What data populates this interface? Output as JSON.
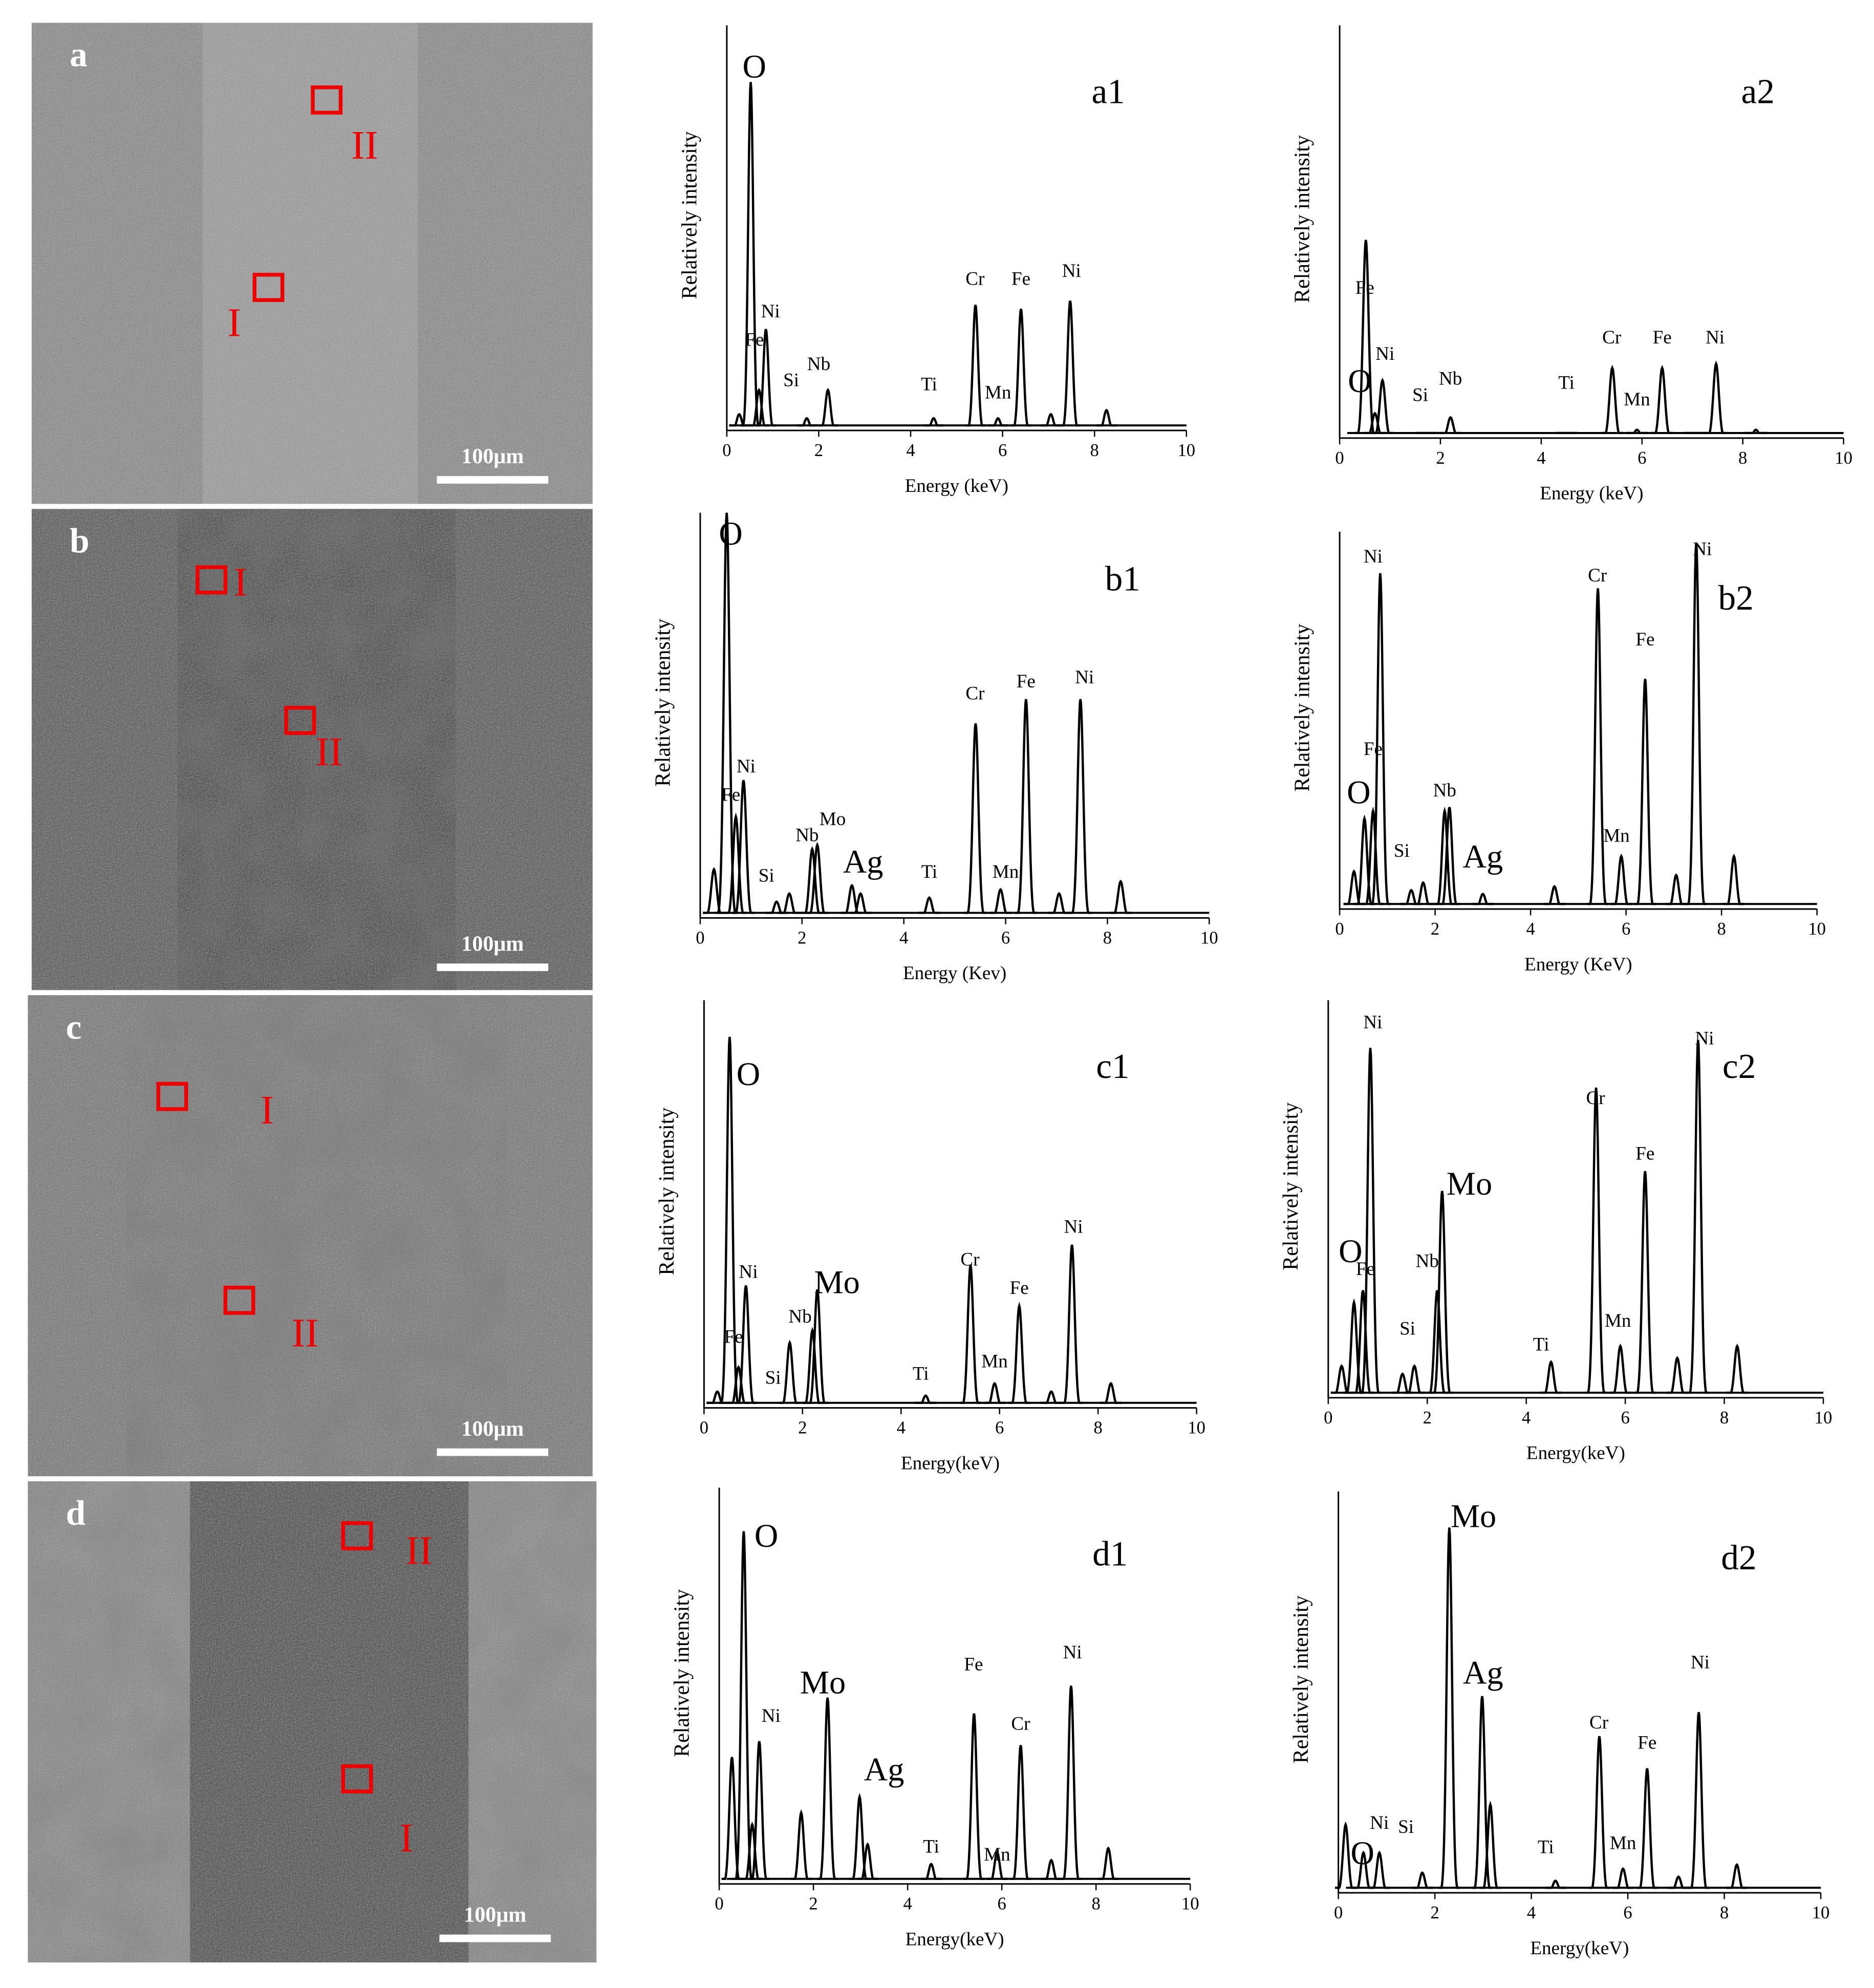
{
  "micrographs": [
    {
      "label": "a",
      "scale_bar": "100μm",
      "regions": [
        "I",
        "II"
      ]
    },
    {
      "label": "b",
      "scale_bar": "100μm",
      "regions": [
        "I",
        "II"
      ]
    },
    {
      "label": "c",
      "scale_bar": "100μm",
      "regions": [
        "I",
        "II"
      ]
    },
    {
      "label": "d",
      "scale_bar": "100μm",
      "regions": [
        "I",
        "II"
      ]
    }
  ],
  "chart_data": [
    {
      "type": "spectrum",
      "label": "a1",
      "ylabel": "Relatively intensity",
      "xlabel": "Energy (keV)",
      "xlim": [
        0,
        10
      ],
      "xticks": [
        0,
        2,
        4,
        6,
        8,
        10
      ],
      "ylim": [
        0,
        100
      ],
      "color": "#000000",
      "x": [
        0.27,
        0.52,
        0.7,
        0.85,
        1.74,
        2.2,
        4.5,
        5.41,
        5.9,
        6.4,
        7.05,
        7.47,
        8.26
      ],
      "values": [
        4,
        86,
        10,
        25,
        3,
        10,
        3,
        31,
        3,
        30,
        4,
        32,
        5
      ],
      "annotations": [
        {
          "text": "O",
          "x": 0.6,
          "y": 89,
          "large": true
        },
        {
          "text": "Ni",
          "x": 0.95,
          "y": 29
        },
        {
          "text": "Fe",
          "x": 0.6,
          "y": 22
        },
        {
          "text": "Si",
          "x": 1.4,
          "y": 12
        },
        {
          "text": "Nb",
          "x": 2.0,
          "y": 16
        },
        {
          "text": "Ti",
          "x": 4.4,
          "y": 11
        },
        {
          "text": "Cr",
          "x": 5.4,
          "y": 37
        },
        {
          "text": "Mn",
          "x": 5.9,
          "y": 9
        },
        {
          "text": "Fe",
          "x": 6.4,
          "y": 37
        },
        {
          "text": "Ni",
          "x": 7.5,
          "y": 39
        }
      ]
    },
    {
      "type": "spectrum",
      "label": "a2",
      "ylabel": "Relatively intensity",
      "xlabel": "Energy (keV)",
      "xlim": [
        0,
        10
      ],
      "xticks": [
        0,
        2,
        4,
        6,
        8,
        10
      ],
      "ylim": [
        0,
        100
      ],
      "color": "#000000",
      "x": [
        0.52,
        0.7,
        0.85,
        1.74,
        2.2,
        4.5,
        5.41,
        5.9,
        6.4,
        7.05,
        7.47,
        8.26
      ],
      "values": [
        48,
        6,
        14,
        1,
        5,
        1,
        17,
        2,
        17,
        1,
        18,
        2
      ],
      "annotations": [
        {
          "text": "Fe",
          "x": 0.5,
          "y": 36
        },
        {
          "text": "Ni",
          "x": 0.9,
          "y": 20
        },
        {
          "text": "O",
          "x": 0.4,
          "y": 13,
          "large": true
        },
        {
          "text": "Si",
          "x": 1.6,
          "y": 10
        },
        {
          "text": "Nb",
          "x": 2.2,
          "y": 14
        },
        {
          "text": "Ti",
          "x": 4.5,
          "y": 13
        },
        {
          "text": "Cr",
          "x": 5.4,
          "y": 24
        },
        {
          "text": "Mn",
          "x": 5.9,
          "y": 9
        },
        {
          "text": "Fe",
          "x": 6.4,
          "y": 24
        },
        {
          "text": "Ni",
          "x": 7.45,
          "y": 24
        }
      ]
    },
    {
      "type": "spectrum",
      "label": "b1",
      "ylabel": "Relatively intensity",
      "xlabel": "Energy (Kev)",
      "xlim": [
        0,
        10
      ],
      "xticks": [
        0,
        2,
        4,
        6,
        8,
        10
      ],
      "ylim": [
        0,
        100
      ],
      "color": "#000000",
      "x": [
        0.27,
        0.52,
        0.7,
        0.85,
        1.5,
        1.75,
        2.2,
        2.3,
        2.98,
        3.15,
        4.5,
        5.41,
        5.9,
        6.4,
        7.05,
        7.47,
        8.26
      ],
      "values": [
        12,
        100,
        25,
        34,
        4,
        6,
        17,
        18,
        8,
        6,
        5,
        48,
        7,
        54,
        6,
        54,
        9
      ],
      "annotations": [
        {
          "text": "O",
          "x": 0.6,
          "y": 94,
          "large": true
        },
        {
          "text": "Ni",
          "x": 0.9,
          "y": 37
        },
        {
          "text": "Fe",
          "x": 0.6,
          "y": 30
        },
        {
          "text": "Si",
          "x": 1.3,
          "y": 10
        },
        {
          "text": "Nb",
          "x": 2.1,
          "y": 20
        },
        {
          "text": "Mo",
          "x": 2.6,
          "y": 24
        },
        {
          "text": "Ag",
          "x": 3.2,
          "y": 13,
          "large": true
        },
        {
          "text": "Ti",
          "x": 4.5,
          "y": 11
        },
        {
          "text": "Cr",
          "x": 5.4,
          "y": 55
        },
        {
          "text": "Mn",
          "x": 6.0,
          "y": 11
        },
        {
          "text": "Fe",
          "x": 6.4,
          "y": 58
        },
        {
          "text": "Ni",
          "x": 7.55,
          "y": 59
        }
      ]
    },
    {
      "type": "spectrum",
      "label": "b2",
      "ylabel": "Relatively intensity",
      "xlabel": "Energy (KeV)",
      "xlim": [
        0,
        10
      ],
      "xticks": [
        0,
        2,
        4,
        6,
        8,
        10
      ],
      "ylim": [
        0,
        100
      ],
      "color": "#000000",
      "x": [
        0.3,
        0.52,
        0.7,
        0.85,
        1.5,
        1.75,
        2.2,
        2.3,
        3.0,
        4.5,
        5.41,
        5.9,
        6.4,
        7.05,
        7.47,
        8.26
      ],
      "values": [
        10,
        24,
        26,
        89,
        5,
        7,
        26,
        27,
        4,
        6,
        85,
        14,
        61,
        9,
        97,
        14
      ],
      "annotations": [
        {
          "text": "Ni",
          "x": 0.7,
          "y": 93
        },
        {
          "text": "Fe",
          "x": 0.7,
          "y": 42
        },
        {
          "text": "O",
          "x": 0.4,
          "y": 30,
          "large": true
        },
        {
          "text": "Si",
          "x": 1.3,
          "y": 15
        },
        {
          "text": "Nb",
          "x": 2.2,
          "y": 31
        },
        {
          "text": "Ag",
          "x": 3.0,
          "y": 13,
          "large": true
        },
        {
          "text": "Cr",
          "x": 5.4,
          "y": 88
        },
        {
          "text": "Mn",
          "x": 5.8,
          "y": 19
        },
        {
          "text": "Fe",
          "x": 6.4,
          "y": 71
        },
        {
          "text": "Ni",
          "x": 7.6,
          "y": 95
        }
      ]
    },
    {
      "type": "spectrum",
      "label": "c1",
      "ylabel": "Relatively intensity",
      "xlabel": "Energy(keV)",
      "xlim": [
        0,
        10
      ],
      "xticks": [
        0,
        2,
        4,
        6,
        8,
        10
      ],
      "ylim": [
        0,
        100
      ],
      "color": "#000000",
      "x": [
        0.27,
        0.52,
        0.7,
        0.85,
        1.74,
        2.2,
        2.3,
        4.5,
        5.41,
        5.9,
        6.4,
        7.05,
        7.47,
        8.26
      ],
      "values": [
        4,
        91,
        10,
        30,
        16,
        19,
        29,
        3,
        35,
        6,
        25,
        4,
        40,
        6
      ],
      "annotations": [
        {
          "text": "O",
          "x": 0.9,
          "y": 81,
          "large": true
        },
        {
          "text": "Ni",
          "x": 0.9,
          "y": 33
        },
        {
          "text": "Fe",
          "x": 0.6,
          "y": 17
        },
        {
          "text": "Si",
          "x": 1.4,
          "y": 7
        },
        {
          "text": "Nb",
          "x": 1.95,
          "y": 22
        },
        {
          "text": "Mo",
          "x": 2.7,
          "y": 30,
          "large": true
        },
        {
          "text": "Ti",
          "x": 4.4,
          "y": 8
        },
        {
          "text": "Cr",
          "x": 5.4,
          "y": 36
        },
        {
          "text": "Mn",
          "x": 5.9,
          "y": 11
        },
        {
          "text": "Fe",
          "x": 6.4,
          "y": 29
        },
        {
          "text": "Ni",
          "x": 7.5,
          "y": 44
        }
      ]
    },
    {
      "type": "spectrum",
      "label": "c2",
      "ylabel": "Relatively intensity",
      "xlabel": "Energy(keV)",
      "xlim": [
        0,
        10
      ],
      "xticks": [
        0,
        2,
        4,
        6,
        8,
        10
      ],
      "ylim": [
        0,
        100
      ],
      "color": "#000000",
      "x": [
        0.27,
        0.52,
        0.7,
        0.85,
        1.5,
        1.74,
        2.2,
        2.3,
        4.5,
        5.41,
        5.9,
        6.4,
        7.05,
        7.47,
        8.26
      ],
      "values": [
        8,
        24,
        27,
        88,
        6,
        8,
        27,
        52,
        9,
        78,
        13,
        57,
        10,
        90,
        13
      ],
      "annotations": [
        {
          "text": "Ni",
          "x": 0.9,
          "y": 94
        },
        {
          "text": "O",
          "x": 0.45,
          "y": 36,
          "large": true
        },
        {
          "text": "Fe",
          "x": 0.75,
          "y": 32
        },
        {
          "text": "Si",
          "x": 1.6,
          "y": 17
        },
        {
          "text": "Nb",
          "x": 2.0,
          "y": 34
        },
        {
          "text": "Mo",
          "x": 2.85,
          "y": 53,
          "large": true
        },
        {
          "text": "Ti",
          "x": 4.3,
          "y": 13
        },
        {
          "text": "Cr",
          "x": 5.4,
          "y": 75
        },
        {
          "text": "Mn",
          "x": 5.85,
          "y": 19
        },
        {
          "text": "Fe",
          "x": 6.4,
          "y": 61
        },
        {
          "text": "Ni",
          "x": 7.6,
          "y": 90
        }
      ]
    },
    {
      "type": "spectrum",
      "label": "d1",
      "ylabel": "Relatively intensity",
      "xlabel": "Energy(keV)",
      "xlim": [
        0,
        10
      ],
      "xticks": [
        0,
        2,
        4,
        6,
        8,
        10
      ],
      "ylim": [
        0,
        100
      ],
      "color": "#000000",
      "x": [
        0.27,
        0.52,
        0.7,
        0.85,
        1.74,
        2.3,
        2.98,
        3.15,
        4.5,
        5.41,
        5.9,
        6.4,
        7.05,
        7.47,
        8.26
      ],
      "values": [
        32,
        89,
        15,
        36,
        18,
        47,
        22,
        10,
        5,
        43,
        8,
        35,
        6,
        50,
        9
      ],
      "annotations": [
        {
          "text": "O",
          "x": 1.0,
          "y": 87,
          "large": true
        },
        {
          "text": "Ni",
          "x": 1.1,
          "y": 42
        },
        {
          "text": "Mo",
          "x": 2.2,
          "y": 50,
          "large": true
        },
        {
          "text": "Ag",
          "x": 3.5,
          "y": 28,
          "large": true
        },
        {
          "text": "Ti",
          "x": 4.5,
          "y": 9
        },
        {
          "text": "Fe",
          "x": 5.4,
          "y": 55
        },
        {
          "text": "Mn",
          "x": 5.9,
          "y": 7
        },
        {
          "text": "Cr",
          "x": 6.4,
          "y": 40
        },
        {
          "text": "Ni",
          "x": 7.5,
          "y": 58
        }
      ]
    },
    {
      "type": "spectrum",
      "label": "d2",
      "ylabel": "Relatively intensity",
      "xlabel": "Energy(keV)",
      "xlim": [
        0,
        10
      ],
      "xticks": [
        0,
        2,
        4,
        6,
        8,
        10
      ],
      "ylim": [
        0,
        100
      ],
      "color": "#000000",
      "x": [
        0.15,
        0.52,
        0.85,
        1.74,
        2.3,
        2.98,
        3.15,
        4.5,
        5.41,
        5.9,
        6.4,
        7.05,
        7.47,
        8.26
      ],
      "values": [
        17,
        10,
        10,
        5,
        91,
        49,
        22,
        3,
        39,
        6,
        31,
        4,
        45,
        7
      ],
      "annotations": [
        {
          "text": "Mo",
          "x": 2.8,
          "y": 93,
          "large": true
        },
        {
          "text": "Ag",
          "x": 3.0,
          "y": 54,
          "large": true
        },
        {
          "text": "Ni",
          "x": 0.85,
          "y": 17
        },
        {
          "text": "O",
          "x": 0.5,
          "y": 9,
          "large": true
        },
        {
          "text": "Si",
          "x": 1.4,
          "y": 16
        },
        {
          "text": "Ti",
          "x": 4.3,
          "y": 11
        },
        {
          "text": "Cr",
          "x": 5.4,
          "y": 42
        },
        {
          "text": "Mn",
          "x": 5.9,
          "y": 12
        },
        {
          "text": "Fe",
          "x": 6.4,
          "y": 37
        },
        {
          "text": "Ni",
          "x": 7.5,
          "y": 57
        }
      ]
    }
  ]
}
